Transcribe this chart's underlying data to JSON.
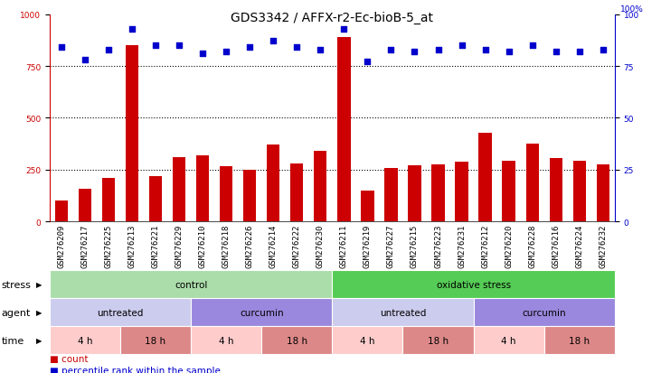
{
  "title": "GDS3342 / AFFX-r2-Ec-bioB-5_at",
  "samples": [
    "GSM276209",
    "GSM276217",
    "GSM276225",
    "GSM276213",
    "GSM276221",
    "GSM276229",
    "GSM276210",
    "GSM276218",
    "GSM276226",
    "GSM276214",
    "GSM276222",
    "GSM276230",
    "GSM276211",
    "GSM276219",
    "GSM276227",
    "GSM276215",
    "GSM276223",
    "GSM276231",
    "GSM276212",
    "GSM276220",
    "GSM276228",
    "GSM276216",
    "GSM276224",
    "GSM276232"
  ],
  "counts": [
    100,
    160,
    210,
    850,
    220,
    310,
    320,
    265,
    250,
    370,
    280,
    340,
    890,
    150,
    260,
    270,
    275,
    290,
    430,
    295,
    375,
    305,
    295,
    275
  ],
  "percentile_ranks": [
    84,
    78,
    83,
    93,
    85,
    85,
    81,
    82,
    84,
    87,
    84,
    83,
    93,
    77,
    83,
    82,
    83,
    85,
    83,
    82,
    85,
    82,
    82,
    83
  ],
  "bar_color": "#cc0000",
  "dot_color": "#0000cc",
  "ylim_left": [
    0,
    1000
  ],
  "ylim_right": [
    0,
    100
  ],
  "yticks_left": [
    0,
    250,
    500,
    750,
    1000
  ],
  "yticks_right": [
    0,
    25,
    50,
    75,
    100
  ],
  "hline_values": [
    250,
    500,
    750
  ],
  "stress_groups": [
    {
      "label": "control",
      "start": 0,
      "end": 12,
      "color": "#aaddaa"
    },
    {
      "label": "oxidative stress",
      "start": 12,
      "end": 24,
      "color": "#55cc55"
    }
  ],
  "agent_groups": [
    {
      "label": "untreated",
      "start": 0,
      "end": 6,
      "color": "#ccccee"
    },
    {
      "label": "curcumin",
      "start": 6,
      "end": 12,
      "color": "#9988dd"
    },
    {
      "label": "untreated",
      "start": 12,
      "end": 18,
      "color": "#ccccee"
    },
    {
      "label": "curcumin",
      "start": 18,
      "end": 24,
      "color": "#9988dd"
    }
  ],
  "time_groups": [
    {
      "label": "4 h",
      "start": 0,
      "end": 3,
      "color": "#ffcccc"
    },
    {
      "label": "18 h",
      "start": 3,
      "end": 6,
      "color": "#dd8888"
    },
    {
      "label": "4 h",
      "start": 6,
      "end": 9,
      "color": "#ffcccc"
    },
    {
      "label": "18 h",
      "start": 9,
      "end": 12,
      "color": "#dd8888"
    },
    {
      "label": "4 h",
      "start": 12,
      "end": 15,
      "color": "#ffcccc"
    },
    {
      "label": "18 h",
      "start": 15,
      "end": 18,
      "color": "#dd8888"
    },
    {
      "label": "4 h",
      "start": 18,
      "end": 21,
      "color": "#ffcccc"
    },
    {
      "label": "18 h",
      "start": 21,
      "end": 24,
      "color": "#dd8888"
    }
  ],
  "bg_color": "#ffffff",
  "xlabel_bg": "#dddddd",
  "title_fontsize": 10,
  "tick_fontsize": 6.5,
  "annot_fontsize": 7.5,
  "row_label_fontsize": 8
}
